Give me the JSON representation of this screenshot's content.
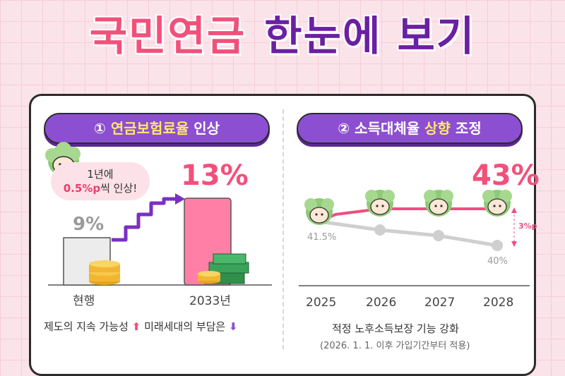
{
  "header": {
    "title_part1": "국민연금",
    "title_part2": "한눈에 보기"
  },
  "left": {
    "pill_number": "①",
    "pill_highlight": "연금보험료율",
    "pill_rest": " 인상",
    "bubble_line1": "1년에",
    "bubble_line2_pink": "0.5%p",
    "bubble_line2_rest": "씩 인상!",
    "current_value": "9%",
    "target_value": "13%",
    "current_label": "현행",
    "target_label": "2033년",
    "caption_part1": "제도의 지속 가능성",
    "caption_part2": " 미래세대의 부담은",
    "arrow_up": "⬆",
    "arrow_down": "⬇"
  },
  "right": {
    "pill_number": "②",
    "pill_text": "소득대체율",
    "pill_highlight": "상향",
    "pill_rest": "조정",
    "new_rate": "43%",
    "old_rate_start": "41.5%",
    "old_rate_end": "40%",
    "gap_label": "3%p",
    "years": [
      "2025",
      "2026",
      "2027",
      "2028"
    ],
    "caption_line1": "적정 노후소득보장 기능 강화",
    "caption_line2": "(2026. 1. 1. 이후 가입기간부터 적용)"
  },
  "colors": {
    "pink": "#f2507b",
    "purple": "#8d4fd1",
    "gray": "#cfcfcf",
    "gold": "#f2b632",
    "green": "#2f8f4b"
  }
}
